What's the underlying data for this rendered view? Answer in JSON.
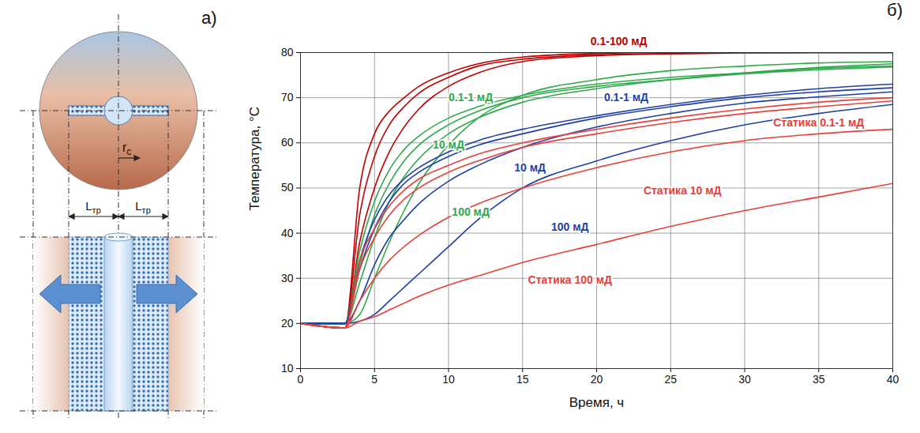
{
  "diagram": {
    "label": "a)",
    "fracture_half_length_label": {
      "text": "L",
      "subscript": "тр"
    },
    "well_radius_label": {
      "text": "r",
      "subscript": "c"
    }
  },
  "chart_data": {
    "type": "line",
    "title": "б)",
    "x_label": "Время, ч",
    "y_label": "Температура, °C",
    "x": [
      0,
      3,
      4,
      5,
      6,
      7,
      8,
      10,
      12,
      15,
      20,
      25,
      30,
      35,
      40
    ],
    "xlim": [
      0,
      40
    ],
    "xticks": [
      0,
      5,
      10,
      15,
      20,
      25,
      30,
      35,
      40
    ],
    "ylim": [
      10,
      80
    ],
    "yticks": [
      10,
      20,
      30,
      40,
      50,
      60,
      70,
      80
    ],
    "grid": true,
    "series": [
      {
        "name": "0.1-100 мД",
        "color": "#c00000",
        "values": [
          20,
          19,
          50,
          62,
          67,
          70,
          72.5,
          75.5,
          77.5,
          79,
          79.8,
          80,
          80,
          80,
          80
        ]
      },
      {
        "name": "0.1-100 мД",
        "color": "#c00000",
        "values": [
          20,
          19,
          44,
          57,
          64,
          68,
          71,
          74.5,
          77,
          78.5,
          79.5,
          79.8,
          80,
          80,
          80
        ]
      },
      {
        "name": "0.1-100 мД",
        "color": "#c00000",
        "values": [
          20,
          19,
          38,
          50,
          58,
          63.5,
          67.5,
          72.5,
          75.5,
          78,
          79.3,
          79.7,
          79.9,
          80,
          80
        ]
      },
      {
        "name": "0.1-1 мД",
        "color": "#2eaa4a",
        "values": [
          20,
          20,
          36,
          47,
          54,
          58.5,
          61.5,
          65.5,
          68,
          70.5,
          73,
          74.5,
          75.5,
          76.5,
          77
        ]
      },
      {
        "name": "0.1-1 мД",
        "color": "#2eaa4a",
        "values": [
          20,
          20,
          33,
          44,
          51,
          56,
          59.5,
          64,
          67,
          70,
          72.5,
          74,
          75.3,
          76.2,
          76.8
        ]
      },
      {
        "name": "10 мД",
        "color": "#2eaa4a",
        "values": [
          20,
          20,
          29,
          39,
          47,
          52.5,
          56.5,
          62,
          65.5,
          69,
          72,
          74,
          75.5,
          76.7,
          77.5
        ]
      },
      {
        "name": "100 мД",
        "color": "#2eaa4a",
        "values": [
          20,
          20,
          22,
          30,
          38,
          45,
          51,
          59.5,
          65.5,
          70.5,
          74,
          76,
          77,
          77.7,
          78
        ]
      },
      {
        "name": "0.1-1 мД",
        "color": "#1f3fa8",
        "values": [
          20,
          20,
          34,
          43,
          48.5,
          52,
          54.5,
          58,
          60.5,
          63,
          66,
          68.5,
          70.5,
          72,
          73
        ]
      },
      {
        "name": "0.1-1 мД",
        "color": "#1f3fa8",
        "values": [
          20,
          20,
          32,
          41,
          47,
          51,
          53.5,
          57,
          59.5,
          62,
          65.5,
          68,
          70,
          71.3,
          72.2
        ]
      },
      {
        "name": "10 мД",
        "color": "#1f3fa8",
        "values": [
          20,
          20,
          25,
          33,
          39,
          43,
          46.5,
          51.5,
          55,
          59,
          63.5,
          66.5,
          68.8,
          70.2,
          71.3
        ]
      },
      {
        "name": "100 мД",
        "color": "#1f3fa8",
        "values": [
          20,
          20,
          20.5,
          22,
          25,
          28,
          31,
          37,
          43,
          50,
          56,
          60.5,
          64,
          66.5,
          68.5
        ]
      },
      {
        "name": "Статика 0.1-1 мД",
        "color": "#e8403a",
        "values": [
          20,
          19,
          34,
          41,
          46,
          49.5,
          52,
          55,
          57.5,
          60,
          63,
          65.5,
          67.5,
          69,
          70
        ]
      },
      {
        "name": "Статика 0.1-1 мД",
        "color": "#e8403a",
        "values": [
          20,
          19,
          32,
          39,
          44,
          47.5,
          50,
          53.5,
          56,
          59,
          62,
          64.5,
          66.5,
          68,
          69.3
        ]
      },
      {
        "name": "Статика 10 мД",
        "color": "#e8403a",
        "values": [
          20,
          19,
          25,
          30,
          34,
          37,
          39.5,
          43.5,
          46.5,
          50,
          54.5,
          58,
          60.5,
          62,
          63
        ]
      },
      {
        "name": "Статика 100 мД",
        "color": "#e8403a",
        "values": [
          20,
          19,
          20.5,
          21.5,
          23,
          24.5,
          26,
          28.5,
          30.5,
          33.5,
          37.5,
          41.5,
          45,
          48,
          51
        ]
      }
    ],
    "annotations": [
      {
        "text": "0.1-100 мД",
        "x": 21.5,
        "y": 82.5,
        "color": "#c00000"
      },
      {
        "text": "0.1-1 мД",
        "x": 11.5,
        "y": 70,
        "color": "#2eaa4a"
      },
      {
        "text": "10 мД",
        "x": 10,
        "y": 59.5,
        "color": "#2eaa4a"
      },
      {
        "text": "100 мД",
        "x": 11.5,
        "y": 44.6,
        "color": "#2eaa4a"
      },
      {
        "text": "0.1-1 мД",
        "x": 22,
        "y": 70,
        "color": "#1f3fa8"
      },
      {
        "text": "10 мД",
        "x": 15.5,
        "y": 54.5,
        "color": "#1f3fa8"
      },
      {
        "text": "100 мД",
        "x": 18.2,
        "y": 41.4,
        "color": "#1f3fa8"
      },
      {
        "text": "Статика 0.1-1 мД",
        "x": 35,
        "y": 64.5,
        "color": "#e8403a"
      },
      {
        "text": "Статика 10 мД",
        "x": 25.8,
        "y": 49.3,
        "color": "#e8403a"
      },
      {
        "text": "Статика 100 мД",
        "x": 18.2,
        "y": 29.6,
        "color": "#e8403a"
      }
    ]
  }
}
